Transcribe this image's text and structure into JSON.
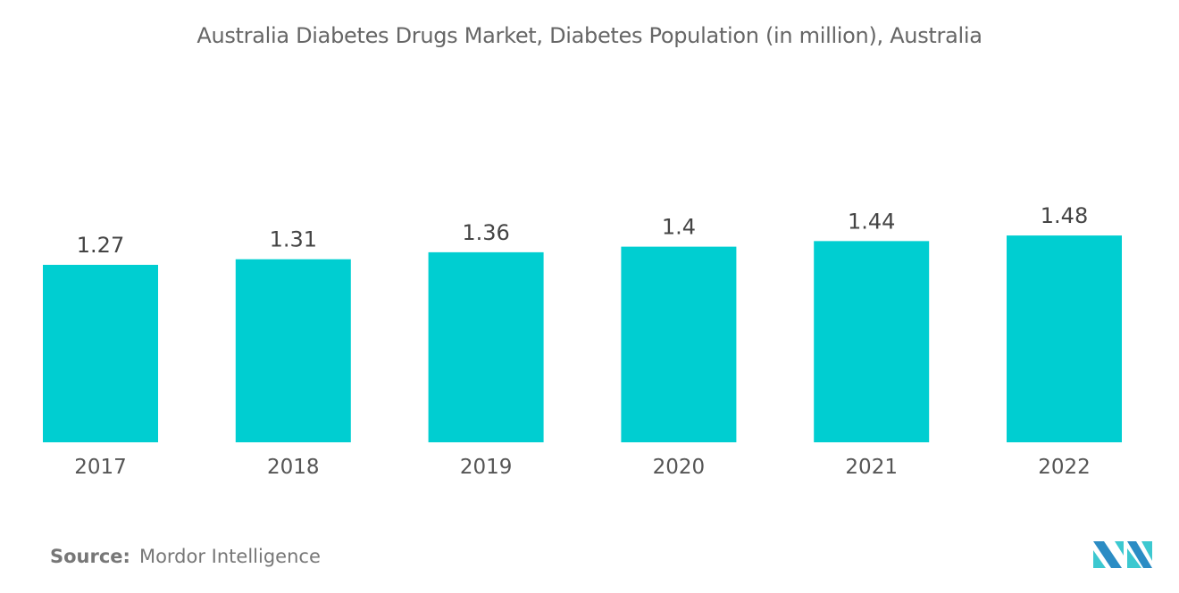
{
  "chart_data": {
    "type": "bar",
    "title": "Australia Diabetes Drugs Market, Diabetes Population (in million), Australia",
    "categories": [
      "2017",
      "2018",
      "2019",
      "2020",
      "2021",
      "2022"
    ],
    "values": [
      1.27,
      1.31,
      1.36,
      1.4,
      1.44,
      1.48
    ],
    "value_labels": [
      "1.27",
      "1.31",
      "1.36",
      "1.4",
      "1.44",
      "1.48"
    ],
    "xlabel": "",
    "ylabel": "",
    "ylim": [
      0,
      1.48
    ],
    "grid": false,
    "bar_color": "#00CED1"
  },
  "footer": {
    "source_label": "Source:",
    "source_value": "Mordor Intelligence"
  },
  "logo": {
    "colors": [
      "#2B8CC4",
      "#3CC8D0"
    ]
  }
}
